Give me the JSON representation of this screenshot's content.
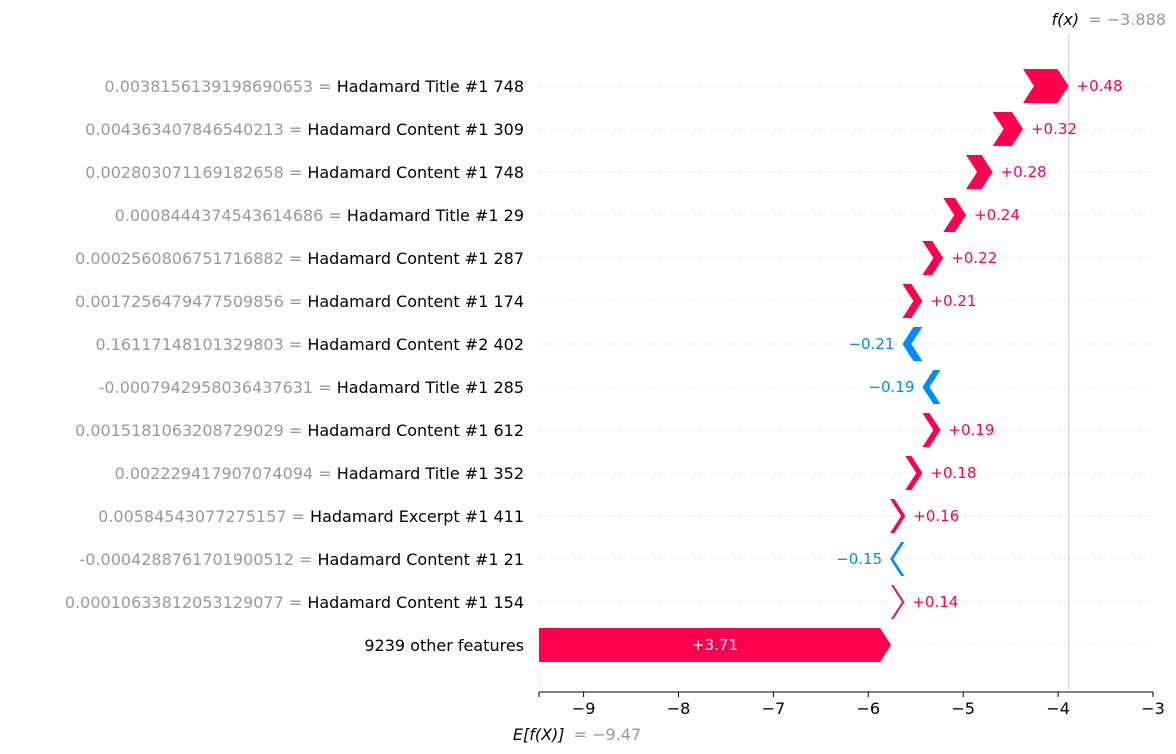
{
  "chart_data": {
    "type": "waterfall",
    "base_value": -9.47,
    "output_value": -3.888,
    "base_label": "E[f(X)]",
    "base_value_text": "= −9.47",
    "output_label": "f(x)",
    "output_value_text": "= −3.888",
    "xlim": [
      -9.47,
      -3
    ],
    "xticks": [
      -9,
      -8,
      -7,
      -6,
      -5,
      -4,
      -3
    ],
    "xtick_labels": [
      "−9",
      "−8",
      "−7",
      "−6",
      "−5",
      "−4",
      "−3"
    ],
    "features": [
      {
        "value": "0.0038156139198690653",
        "name": "Hadamard Title #1 748",
        "contribution": 0.48,
        "label": "+0.48"
      },
      {
        "value": "0.004363407846540213",
        "name": "Hadamard Content #1 309",
        "contribution": 0.32,
        "label": "+0.32"
      },
      {
        "value": "0.002803071169182658",
        "name": "Hadamard Content #1 748",
        "contribution": 0.28,
        "label": "+0.28"
      },
      {
        "value": "0.0008444374543614686",
        "name": "Hadamard Title #1 29",
        "contribution": 0.24,
        "label": "+0.24"
      },
      {
        "value": "0.0002560806751716882",
        "name": "Hadamard Content #1 287",
        "contribution": 0.22,
        "label": "+0.22"
      },
      {
        "value": "0.0017256479477509856",
        "name": "Hadamard Content #1 174",
        "contribution": 0.21,
        "label": "+0.21"
      },
      {
        "value": "0.16117148101329803",
        "name": "Hadamard Content #2 402",
        "contribution": -0.21,
        "label": "−0.21"
      },
      {
        "value": "-0.0007942958036437631",
        "name": "Hadamard Title #1 285",
        "contribution": -0.19,
        "label": "−0.19"
      },
      {
        "value": "0.0015181063208729029",
        "name": "Hadamard Content #1 612",
        "contribution": 0.19,
        "label": "+0.19"
      },
      {
        "value": "0.002229417907074094",
        "name": "Hadamard Title #1 352",
        "contribution": 0.18,
        "label": "+0.18"
      },
      {
        "value": "0.00584543077275157",
        "name": "Hadamard Excerpt #1 411",
        "contribution": 0.16,
        "label": "+0.16"
      },
      {
        "value": "-0.0004288761701900512",
        "name": "Hadamard Content #1 21",
        "contribution": -0.15,
        "label": "−0.15"
      },
      {
        "value": "0.00010633812053129077",
        "name": "Hadamard Content #1 154",
        "contribution": 0.14,
        "label": "+0.14"
      }
    ],
    "other": {
      "name": "9239 other features",
      "contribution": 3.71,
      "label": "+3.71"
    },
    "colors": {
      "positive": "#ff0051",
      "negative": "#008bfb",
      "value_text": "#999999",
      "grid": "#cccccc"
    }
  }
}
